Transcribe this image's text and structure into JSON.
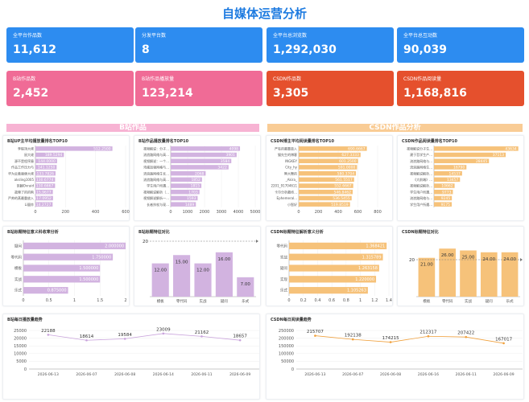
{
  "header": {
    "title": "自媒体运营分析"
  },
  "colors": {
    "blue": "#2d8cf0",
    "pink": "#f06b96",
    "red": "#e5502d",
    "bili": "#d2b3e0",
    "csdn": "#f6c27a",
    "bili_line": "#c9a3dc",
    "csdn_line": "#f0a03c"
  },
  "cards": [
    {
      "label": "全平台作品数",
      "value": "11,612",
      "color": "#2d8cf0"
    },
    {
      "label": "分发平台数",
      "value": "8",
      "color": "#2d8cf0"
    },
    {
      "label": "全平台总浏览数",
      "value": "1,292,030",
      "color": "#2d8cf0"
    },
    {
      "label": "全平台总互动数",
      "value": "90,039",
      "color": "#2d8cf0"
    },
    {
      "label": "B站作品数",
      "value": "2,452",
      "color": "#f06b96"
    },
    {
      "label": "B站作品播放量",
      "value": "123,214",
      "color": "#f06b96"
    },
    {
      "label": "CSDN作品数",
      "value": "3,305",
      "color": "#e5502d"
    },
    {
      "label": "CSDN作品阅读量",
      "value": "1,168,816",
      "color": "#e5502d"
    }
  ],
  "sections": {
    "bili": "B站作品",
    "csdn": "CSDN作品分析"
  },
  "chart_data": [
    {
      "id": "c1",
      "type": "bar",
      "orientation": "horizontal",
      "title": "B站UP主平均播放量排名TOP10",
      "categories": [
        "李毅顶大佬",
        "鼠大佬",
        "源不是程序猿",
        "作品工作压力与",
        "华为云着顺便大佬",
        "aksling1005",
        "凯翻Ovraid",
        "故障了的的狗",
        "严帅的蒸最重放入",
        "Li量炸"
      ],
      "values": [
        512.25,
        189.5294,
        144.0,
        141.125,
        133.7826,
        130.6774,
        130.6667,
        115.9677,
        117.0952,
        114.2727
      ],
      "labels": [
        "512.2500",
        "189.5294",
        "144.0000",
        "141.1250",
        "133.7826",
        "130.6774",
        "130.6667",
        "115.9677",
        "117.0952",
        "114.2727"
      ],
      "xlim": [
        0,
        600
      ],
      "ticks": [
        "0",
        "200",
        "400",
        "600"
      ]
    },
    {
      "id": "c2",
      "type": "bar",
      "orientation": "horizontal",
      "title": "B站作品播放量排名TOP10",
      "categories": [
        "视频解说：分子...",
        "流浪路网络与高...",
        "视频解说：一个...",
        "鸡蛋加强网格与...",
        "流浪路网络生长...",
        "流浪路网络与高...",
        "学生用户所遇...",
        "视频解说解析（...",
        "视频解说解析一...",
        "长者扶杖与现..."
      ],
      "values": [
        4098,
        3901,
        3584,
        3422,
        2068,
        1852,
        1815,
        1703,
        1593,
        1489
      ],
      "labels": [
        "4098",
        "3901",
        "3584",
        "3422",
        "2068",
        "1852",
        "1815",
        "1703",
        "1593",
        "1489"
      ],
      "xlim": [
        0,
        5000
      ],
      "ticks": [
        "0",
        "1000",
        "2000",
        "3000",
        "4000",
        "5000"
      ]
    },
    {
      "id": "c3",
      "type": "bar",
      "orientation": "horizontal",
      "title": "CSDN博主平均阅读量排名TOP10",
      "categories": [
        "严有的最重放入",
        "猫先生的博客",
        "INGKEY",
        "City_hy",
        "熊大舞的",
        "_Akira_",
        "2201_91704611",
        "卡尔分析最终...",
        "Ephemeral...",
        "小智好"
      ],
      "values": [
        690.6667,
        627.3333,
        601.25,
        591.0,
        580.3704,
        561.5517,
        552.6667,
        546.8462,
        536.5455,
        519.8519
      ],
      "labels": [
        "690.6667",
        "627.3333",
        "601.2500",
        "591.0000",
        "580.3704",
        "561.5517",
        "552.6667",
        "546.8462",
        "536.5455",
        "519.8519"
      ],
      "xlim": [
        0,
        800
      ],
      "ticks": [
        "0",
        "200",
        "400",
        "600",
        "800"
      ]
    },
    {
      "id": "c4",
      "type": "bar",
      "orientation": "horizontal",
      "title": "CSDN作品阅读量排名TOP10",
      "categories": [
        "视频解说分子生...",
        "建于哲学生产...",
        "流浪路网络与...",
        "流浪路网络生...",
        "视频解说解析...",
        "《大前端》...",
        "视频解说解析...",
        "学生用户所遇...",
        "流浪路网络与...",
        "学生用户所遇..."
      ],
      "values": [
        43634,
        37113,
        28445,
        16790,
        14537,
        13457,
        10662,
        9773,
        9245,
        9175
      ],
      "labels": [
        "43634",
        "37113",
        "28445",
        "16790",
        "14537",
        "13457",
        "10662",
        "9773",
        "9245",
        "9175"
      ],
      "xlim": [
        0,
        45000
      ],
      "ticks": []
    },
    {
      "id": "c5",
      "type": "bar",
      "orientation": "horizontal",
      "title": "B站标题特征意义科收率分析",
      "categories": [
        "疑问",
        "零代码",
        "模板",
        "实战",
        "乐式"
      ],
      "values": [
        2.0,
        1.75,
        1.5,
        1.5,
        0.875
      ],
      "labels": [
        "2.000000",
        "1.750000",
        "1.500000",
        "1.500000",
        "0.875000"
      ],
      "xlim": [
        0,
        2
      ],
      "ticks": [
        "0",
        "0.5",
        "1",
        "1.5",
        "2"
      ]
    },
    {
      "id": "c6",
      "type": "bar",
      "title": "B站标题特征对比",
      "categories": [
        "模板",
        "零代码",
        "实战",
        "疑问",
        "乐式"
      ],
      "values": [
        12.0,
        15.0,
        12.0,
        16.0,
        7.0
      ],
      "labels": [
        "12.00",
        "15.00",
        "12.00",
        "16.00",
        "7.00"
      ],
      "ylim": [
        0,
        20
      ],
      "reference_label": "20"
    },
    {
      "id": "c7",
      "type": "bar",
      "orientation": "horizontal",
      "title": "CSDN标题特征解析意义分析",
      "categories": [
        "零代码",
        "实战",
        "疑问",
        "实现",
        "乐式"
      ],
      "values": [
        1.36842,
        1.31579,
        1.26316,
        1.22,
        1.105263
      ],
      "labels": [
        "1.368421",
        "1.315789",
        "1.263158",
        "1.220000",
        "1.105263"
      ],
      "xlim": [
        0,
        1.4
      ],
      "ticks": [
        "0",
        "0.2",
        "0.4",
        "0.6",
        "0.8",
        "1",
        "1.2",
        "1.4"
      ]
    },
    {
      "id": "c8",
      "type": "bar",
      "title": "CSDN标题特征对比",
      "categories": [
        "模板",
        "零代码",
        "实战",
        "疑问",
        "乐式"
      ],
      "values": [
        21.0,
        26.0,
        25.0,
        24.0,
        24.0
      ],
      "labels": [
        "21.00",
        "26.00",
        "25.00",
        "24.00",
        "24.00"
      ],
      "ylim": [
        0,
        30
      ],
      "reference_label": "20"
    },
    {
      "id": "c9",
      "type": "line",
      "title": "B站每日播放量趋势",
      "x": [
        "2026-06-13",
        "2026-06-07",
        "2026-06-08",
        "2026-06-14",
        "2026-06-11",
        "2026-06-09"
      ],
      "values": [
        22188,
        18614,
        19584,
        23009,
        21162,
        18657
      ],
      "labels": [
        "22188",
        "18614",
        "19584",
        "23009",
        "21162",
        "18657"
      ],
      "ylim": [
        0,
        25000
      ],
      "yticks": [
        "0",
        "5000",
        "10000",
        "15000",
        "20000",
        "25000"
      ]
    },
    {
      "id": "c10",
      "type": "line",
      "title": "CSDN每日阅读量趋势",
      "x": [
        "2026-06-13",
        "2026-06-07",
        "2026-06-08",
        "2026-06-16",
        "2026-06-11",
        "2026-06-09"
      ],
      "values": [
        215707,
        192138,
        174215,
        212317,
        207422,
        167017
      ],
      "labels": [
        "215707",
        "192138",
        "174215",
        "212317",
        "207422",
        "167017"
      ],
      "ylim": [
        0,
        250000
      ],
      "yticks": [
        "0",
        "50000",
        "100000",
        "150000",
        "200000",
        "250000"
      ]
    }
  ]
}
